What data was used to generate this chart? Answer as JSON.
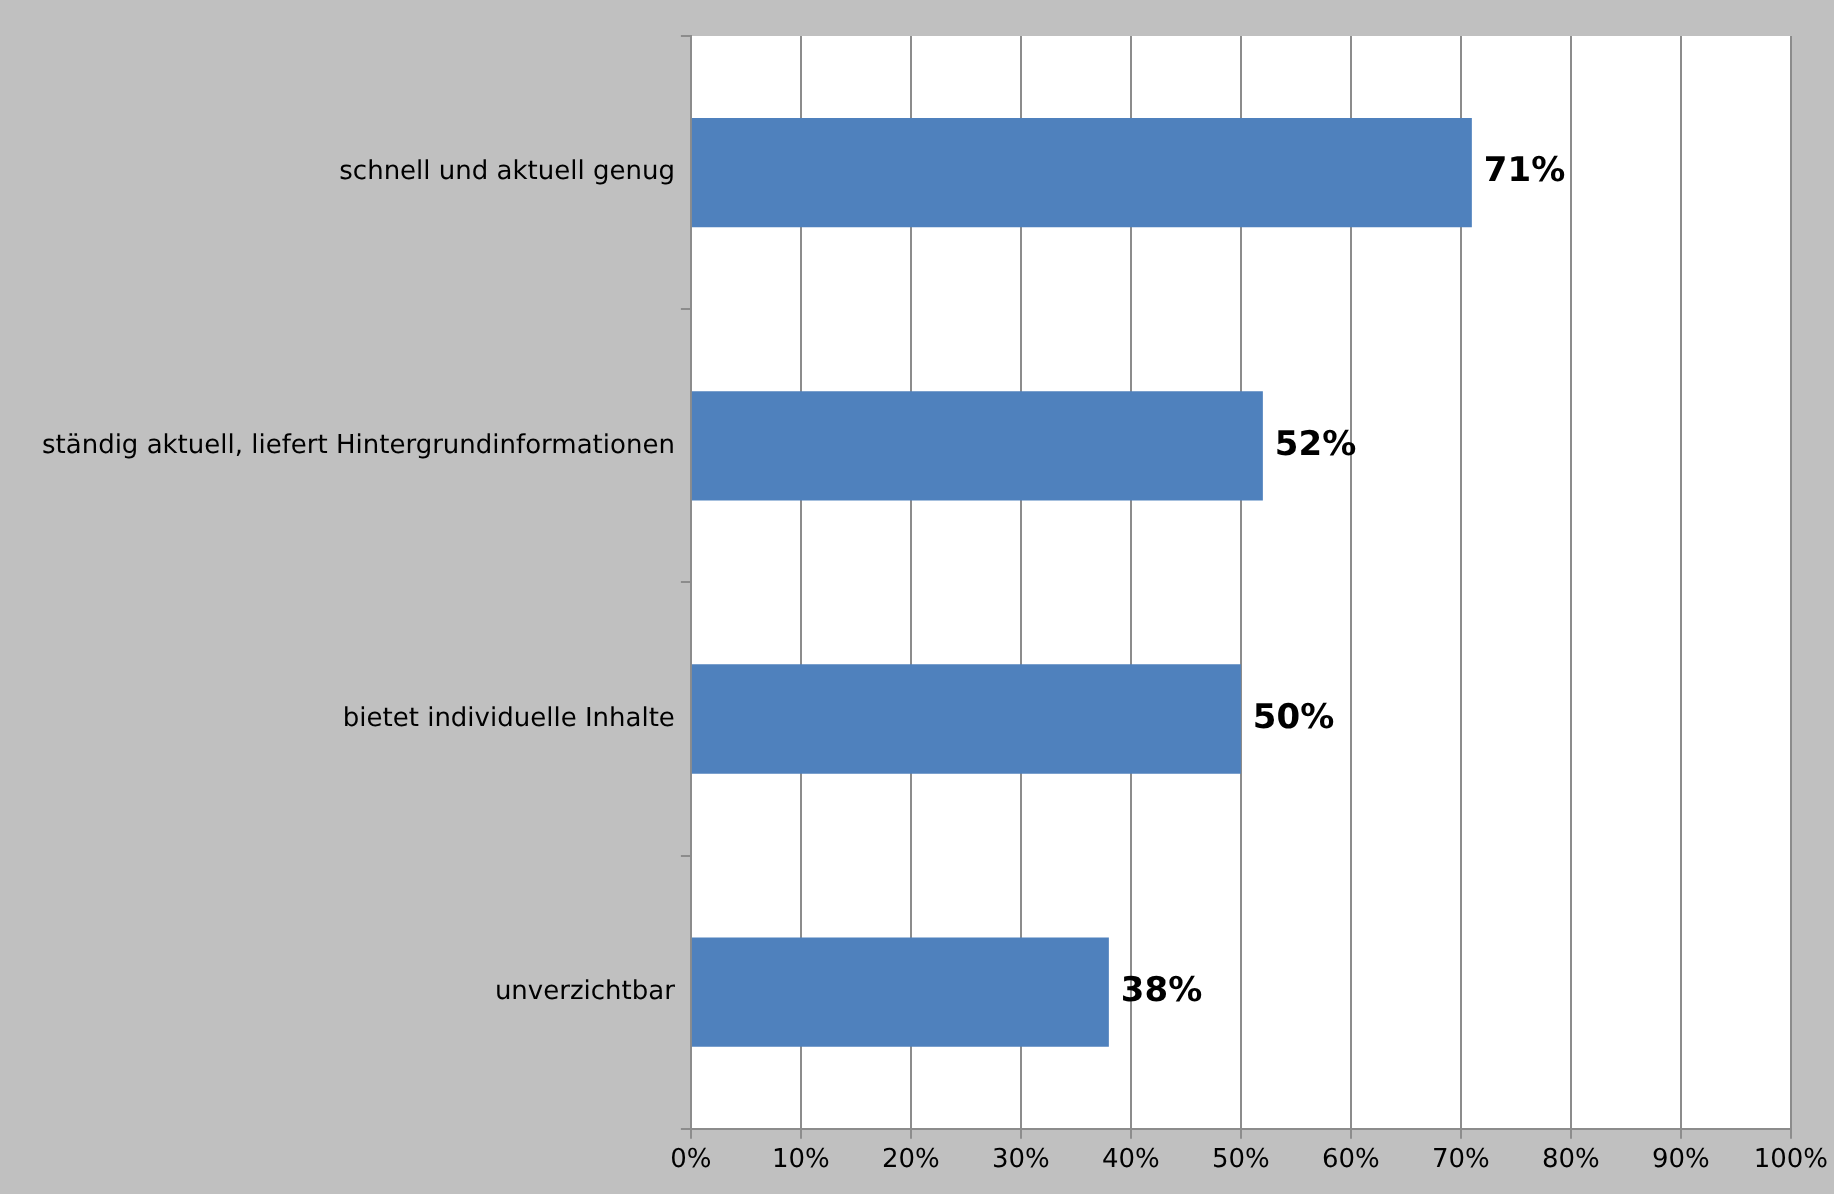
{
  "chart_data": {
    "type": "bar",
    "orientation": "horizontal",
    "categories": [
      "schnell und aktuell genug",
      "ständig aktuell, liefert Hintergrundinformationen",
      "bietet individuelle Inhalte",
      "unverzichtbar"
    ],
    "values": [
      71,
      52,
      50,
      38
    ],
    "value_labels": [
      "71%",
      "52%",
      "50%",
      "38%"
    ],
    "color": "#4f81bd",
    "xlim": [
      0,
      100
    ],
    "xticks": [
      {
        "value": 0,
        "label": "0%"
      },
      {
        "value": 10,
        "label": "10%"
      },
      {
        "value": 20,
        "label": "20%"
      },
      {
        "value": 30,
        "label": "30%"
      },
      {
        "value": 40,
        "label": "40%"
      },
      {
        "value": 50,
        "label": "50%"
      },
      {
        "value": 60,
        "label": "60%"
      },
      {
        "value": 70,
        "label": "70%"
      },
      {
        "value": 80,
        "label": "80%"
      },
      {
        "value": 90,
        "label": "90%"
      },
      {
        "value": 100,
        "label": "100%"
      }
    ],
    "grid": "x",
    "legend": false
  }
}
